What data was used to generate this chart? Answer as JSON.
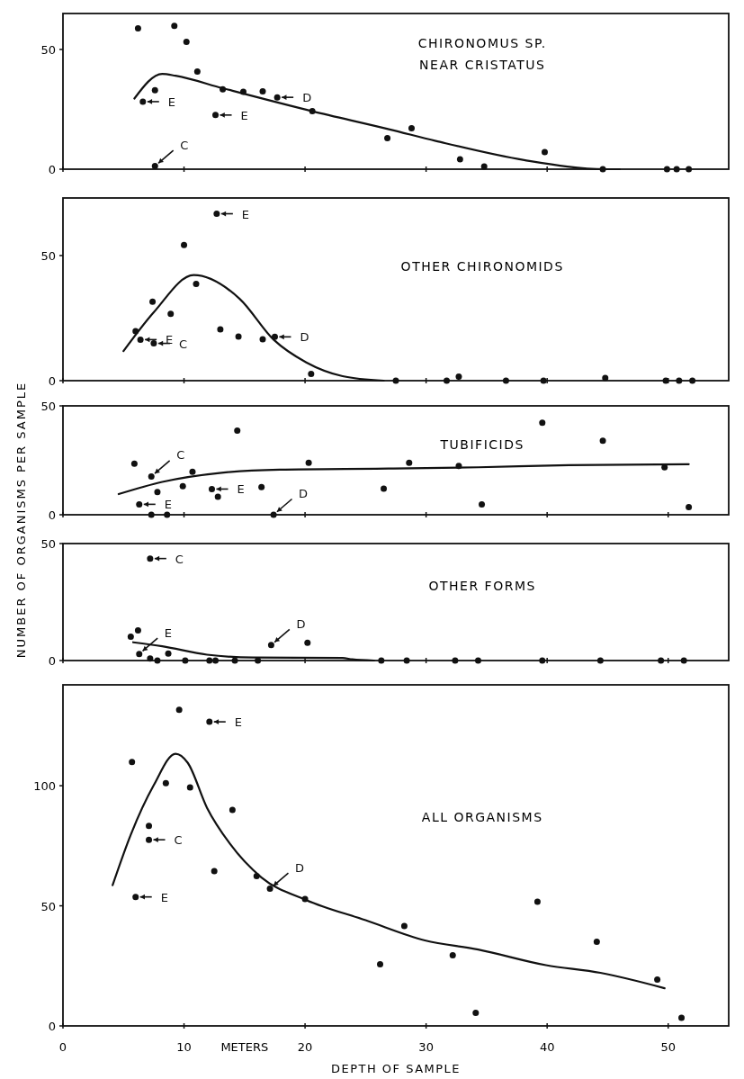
{
  "chart_data": [
    {
      "type": "scatter",
      "title": "CHIRONOMUS SP.\nNEAR CRISTATUS",
      "xlim": [
        0,
        55
      ],
      "xticks": [
        0,
        10,
        20,
        30,
        40,
        50
      ],
      "ylim": [
        0,
        65
      ],
      "yticks": [
        0,
        50
      ],
      "tick_labels": "y",
      "grid": false,
      "marker": "circle",
      "line_style": "solid",
      "series": [
        {
          "type": "scatter",
          "color": "#111111",
          "x": [
            6.2,
            9.2,
            10.2,
            11.1,
            13.2,
            14.9,
            16.5,
            17.7,
            20.6,
            26.8,
            28.8,
            32.8,
            34.8,
            39.8,
            44.6,
            49.9,
            50.7,
            51.7,
            6.6,
            7.6,
            7.6,
            12.6
          ],
          "values": [
            58.8,
            59.8,
            53.2,
            40.8,
            33.3,
            32.3,
            32.5,
            30,
            24.2,
            13,
            17.1,
            4.1,
            1.1,
            7.1,
            0,
            0,
            0,
            0,
            28.2,
            33,
            1.3,
            22.6
          ]
        },
        {
          "type": "line",
          "marker": "none",
          "color": "#111111",
          "x": [
            5.9,
            8.2,
            9.3,
            13.2,
            20.6,
            27,
            30.8,
            38.1,
            44.8,
            46
          ],
          "values": [
            29.5,
            39.8,
            39,
            33.8,
            24.2,
            16.6,
            11.8,
            3.8,
            0,
            0
          ]
        }
      ],
      "annotations": [
        {
          "text": "E",
          "x": 6.6,
          "y": 28.2
        },
        {
          "text": "C",
          "x": 7.6,
          "y": 1.3
        },
        {
          "text": "E",
          "x": 12.6,
          "y": 22.6
        },
        {
          "text": "D",
          "x": 17.7,
          "y": 30
        }
      ]
    },
    {
      "type": "scatter",
      "title": "OTHER CHIRONOMIDS",
      "xlim": [
        0,
        55
      ],
      "xticks": [
        0,
        10,
        20,
        30,
        40,
        50
      ],
      "ylim": [
        0,
        73
      ],
      "yticks": [
        0,
        50
      ],
      "tick_labels": "y",
      "grid": false,
      "marker": "circle",
      "line_style": "solid",
      "series": [
        {
          "type": "scatter",
          "color": "#111111",
          "x": [
            12.7,
            10.0,
            11.0,
            7.4,
            8.9,
            6.0,
            6.4,
            7.5,
            13.0,
            14.5,
            16.5,
            17.5,
            20.5,
            27.5,
            31.7,
            32.7,
            36.6,
            39.7,
            44.8,
            49.8,
            50.9,
            52
          ],
          "values": [
            66.7,
            54.2,
            38.7,
            31.6,
            26.7,
            19.8,
            16.4,
            14.9,
            20.5,
            17.6,
            16.5,
            17.5,
            2.7,
            0,
            0,
            1.6,
            0,
            0,
            1.1,
            0,
            0,
            0
          ]
        },
        {
          "type": "line",
          "marker": "none",
          "color": "#111111",
          "x": [
            5.0,
            7.5,
            10.8,
            14.6,
            17.4,
            20.1,
            23.1,
            26.5
          ],
          "values": [
            11.8,
            27.3,
            42.2,
            32.7,
            16.4,
            7.3,
            1.8,
            0
          ]
        }
      ],
      "annotations": [
        {
          "text": "E",
          "x": 12.7,
          "y": 66.7
        },
        {
          "text": "E",
          "x": 6.4,
          "y": 16.4
        },
        {
          "text": "C",
          "x": 7.5,
          "y": 14.9
        },
        {
          "text": "D",
          "x": 17.5,
          "y": 17.5
        }
      ]
    },
    {
      "type": "scatter",
      "title": "TUBIFICIDS",
      "ylabel": "NUMBER OF ORGANISMS PER SAMPLE",
      "xlim": [
        0,
        55
      ],
      "xticks": [
        0,
        10,
        20,
        30,
        40,
        50
      ],
      "ylim": [
        0,
        50
      ],
      "yticks": [
        0,
        50
      ],
      "tick_labels": "y",
      "grid": false,
      "marker": "circle",
      "line_style": "solid",
      "series": [
        {
          "type": "scatter",
          "color": "#111111",
          "x": [
            5.9,
            7.3,
            7.8,
            9.9,
            10.7,
            6.3,
            7.3,
            8.6,
            12.3,
            12.8,
            14.4,
            16.4,
            17.4,
            20.3,
            26.5,
            28.6,
            32.7,
            34.6,
            39.6,
            44.6,
            49.7,
            51.7
          ],
          "values": [
            23.4,
            17.6,
            10.4,
            13.1,
            19.7,
            4.8,
            0,
            0,
            11.8,
            8.3,
            38.6,
            12.7,
            0,
            23.9,
            12,
            23.9,
            22.4,
            4.8,
            42.3,
            34,
            21.8,
            3.5
          ]
        },
        {
          "type": "line",
          "marker": "none",
          "color": "#111111",
          "x": [
            4.6,
            8.2,
            13.1,
            17.9,
            26.9,
            34.3,
            41.8,
            51.7
          ],
          "values": [
            9.5,
            15.1,
            19.3,
            20.7,
            21.2,
            21.8,
            22.8,
            23.2
          ]
        }
      ],
      "annotations": [
        {
          "text": "C",
          "x": 7.3,
          "y": 17.6
        },
        {
          "text": "E",
          "x": 6.3,
          "y": 4.8
        },
        {
          "text": "E",
          "x": 12.3,
          "y": 11.8
        },
        {
          "text": "D",
          "x": 17.4,
          "y": 0
        }
      ]
    },
    {
      "type": "scatter",
      "title": "OTHER FORMS",
      "xlim": [
        0,
        55
      ],
      "xticks": [
        0,
        10,
        20,
        30,
        40,
        50
      ],
      "ylim": [
        0,
        50
      ],
      "yticks": [
        0,
        50
      ],
      "tick_labels": "y",
      "grid": false,
      "marker": "circle",
      "line_style": "solid",
      "series": [
        {
          "type": "scatter",
          "color": "#111111",
          "x": [
            7.2,
            5.6,
            6.2,
            8.7,
            6.3,
            7.2,
            7.8,
            10.1,
            12.1,
            12.6,
            14.2,
            16.1,
            17.2,
            20.2,
            26.3,
            28.4,
            32.4,
            34.3,
            39.6,
            44.4,
            49.4,
            51.3
          ],
          "values": [
            43.6,
            10.2,
            12.9,
            3,
            2.8,
            0.9,
            0,
            0,
            0,
            0,
            0,
            0,
            6.6,
            7.6,
            0,
            0,
            0,
            0,
            0,
            0,
            0,
            0
          ]
        },
        {
          "type": "line",
          "marker": "none",
          "color": "#111111",
          "x": [
            5.8,
            8.2,
            11.9,
            15.7,
            23.1,
            23.9,
            25.7
          ],
          "values": [
            7.8,
            6.1,
            2.5,
            1.3,
            1.1,
            0.5,
            0
          ]
        }
      ],
      "annotations": [
        {
          "text": "C",
          "x": 7.2,
          "y": 43.6
        },
        {
          "text": "E",
          "x": 6.3,
          "y": 2.8
        },
        {
          "text": "D",
          "x": 17.2,
          "y": 6.6
        }
      ]
    },
    {
      "type": "scatter",
      "title": "ALL ORGANISMS",
      "xlabel": "DEPTH OF SAMPLE",
      "xlim": [
        0,
        55
      ],
      "xticks": [
        0,
        10,
        20,
        30,
        40,
        50
      ],
      "ylim": [
        0,
        142
      ],
      "yticks": [
        0,
        50,
        100
      ],
      "grid": false,
      "marker": "circle",
      "line_style": "solid",
      "series": [
        {
          "type": "scatter",
          "color": "#111111",
          "x": [
            9.6,
            12.1,
            5.7,
            8.5,
            10.5,
            14.0,
            7.1,
            7.1,
            6.0,
            12.5,
            16.0,
            17.1,
            20.0,
            28.2,
            39.2,
            44.1,
            26.2,
            32.2,
            34.1,
            49.1,
            51.1
          ],
          "values": [
            131.6,
            126.6,
            109.9,
            101.1,
            99.3,
            89.9,
            83.3,
            77.5,
            53.7,
            64.4,
            62.4,
            57.1,
            52.8,
            41.6,
            51.7,
            35,
            25.7,
            29.4,
            5.4,
            19.3,
            3.4
          ]
        },
        {
          "type": "line",
          "marker": "none",
          "color": "#111111",
          "x": [
            4.1,
            5.6,
            7.5,
            9.3,
            10.3,
            11.9,
            13.8,
            16.4,
            20.1,
            25,
            29.9,
            34.3,
            39.9,
            44.4,
            49.7
          ],
          "values": [
            58.6,
            79.6,
            100.2,
            113.3,
            109.6,
            90.8,
            75.8,
            61.8,
            52.4,
            44,
            35.6,
            31.8,
            25.3,
            22.1,
            15.7
          ]
        }
      ],
      "annotations": [
        {
          "text": "E",
          "x": 12.1,
          "y": 126.6
        },
        {
          "text": "C",
          "x": 7.1,
          "y": 77.5
        },
        {
          "text": "E",
          "x": 6.0,
          "y": 53.7
        },
        {
          "text": "D",
          "x": 17.1,
          "y": 57.1
        },
        "METERS"
      ]
    }
  ]
}
